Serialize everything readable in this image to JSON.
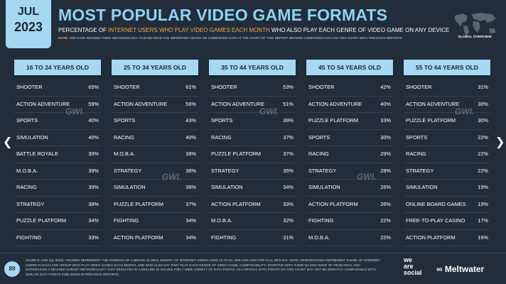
{
  "header": {
    "month": "JUL",
    "year": "2023",
    "title": "MOST POPULAR VIDEO GAME FORMATS",
    "subtitle": [
      "PERCENTAGE OF ",
      "INTERNET USERS WHO PLAY VIDEO GAMES EACH MONTH",
      " WHO ALSO PLAY EACH GENRE OF VIDEO GAME ON ANY DEVICE"
    ],
    "note_label": "NOTE:",
    "note": "GWI HAVE REVISED THEIR METHODOLOGY. PLEASE READ THE IMPORTANT NOTES ON COMPARING DATA AT THE START OF THIS REPORT BEFORE COMPARING DATA ON THIS CHART WITH PREVIOUS REPORTS",
    "badge_label": "GLOBAL OVERVIEW"
  },
  "tables": [
    {
      "heading": "16 TO 24 YEARS OLD",
      "rows": [
        [
          "SHOOTER",
          "65%"
        ],
        [
          "ACTION ADVENTURE",
          "59%"
        ],
        [
          "SPORTS",
          "40%"
        ],
        [
          "SIMULATION",
          "40%"
        ],
        [
          "BATTLE ROYALE",
          "39%"
        ],
        [
          "M.O.B.A.",
          "39%"
        ],
        [
          "RACING",
          "39%"
        ],
        [
          "STRATEGY",
          "38%"
        ],
        [
          "PUZZLE PLATFORM",
          "34%"
        ],
        [
          "FIGHTING",
          "33%"
        ]
      ]
    },
    {
      "heading": "25 TO 34 YEARS OLD",
      "rows": [
        [
          "SHOOTER",
          "61%"
        ],
        [
          "ACTION ADVENTURE",
          "56%"
        ],
        [
          "SPORTS",
          "43%"
        ],
        [
          "RACING",
          "40%"
        ],
        [
          "M.O.B.A.",
          "38%"
        ],
        [
          "STRATEGY",
          "38%"
        ],
        [
          "SIMULATION",
          "38%"
        ],
        [
          "PUZZLE PLATFORM",
          "37%"
        ],
        [
          "FIGHTING",
          "34%"
        ],
        [
          "ACTION PLATFORM",
          "34%"
        ]
      ]
    },
    {
      "heading": "35 TO 44 YEARS OLD",
      "rows": [
        [
          "SHOOTER",
          "53%"
        ],
        [
          "ACTION ADVENTURE",
          "51%"
        ],
        [
          "SPORTS",
          "39%"
        ],
        [
          "RACING",
          "37%"
        ],
        [
          "PUZZLE PLATFORM",
          "37%"
        ],
        [
          "STRATEGY",
          "35%"
        ],
        [
          "SIMULATION",
          "34%"
        ],
        [
          "ACTION PLATFORM",
          "33%"
        ],
        [
          "M.O.B.A.",
          "32%"
        ],
        [
          "FIGHTING",
          "31%"
        ]
      ]
    },
    {
      "heading": "45 TO 54 YEARS OLD",
      "rows": [
        [
          "SHOOTER",
          "42%"
        ],
        [
          "ACTION ADVENTURE",
          "40%"
        ],
        [
          "PUZZLE PLATFORM",
          "33%"
        ],
        [
          "SPORTS",
          "30%"
        ],
        [
          "RACING",
          "29%"
        ],
        [
          "STRATEGY",
          "28%"
        ],
        [
          "SIMULATION",
          "26%"
        ],
        [
          "ACTION PLATFORM",
          "26%"
        ],
        [
          "FIGHTING",
          "22%"
        ],
        [
          "M.O.B.A.",
          "22%"
        ]
      ]
    },
    {
      "heading": "55 TO 64 YEARS OLD",
      "rows": [
        [
          "SHOOTER",
          "31%"
        ],
        [
          "ACTION ADVENTURE",
          "30%"
        ],
        [
          "PUZZLE PLATFORM",
          "30%"
        ],
        [
          "SPORTS",
          "22%"
        ],
        [
          "RACING",
          "22%"
        ],
        [
          "STRATEGY",
          "22%"
        ],
        [
          "SIMULATION",
          "19%"
        ],
        [
          "ONLINE BOARD GAMES",
          "19%"
        ],
        [
          "FREE-TO-PLAY CASINO",
          "17%"
        ],
        [
          "ACTION PLATFORM",
          "16%"
        ]
      ]
    }
  ],
  "watermark": "GWI.",
  "footer": {
    "page_number": "89",
    "source": "SOURCE: GWI (Q1 2023). FIGURES REPRESENT THE FINDINGS OF A BROAD GLOBAL SURVEY OF INTERNET USERS AGED 16 TO 64. SEE GWI.COM FOR FULL DETAILS. NOTE: PERCENTAGES REPRESENT SHARE OF INTERNET USERS IN EACH AGE GROUP WHO PLAY VIDEO GAMES EACH MONTH, AND WHO ALSO SAY THEY PLAY EACH GENRE OF VIDEO GAME. COMPARABILITY: STARTING WITH THEIR Q4 2022 WAVE OF RESEARCH, GWI INTRODUCED A REVISED SURVEY METHODOLOGY THAT RESULTED IN A DECLINE IN VALUES FOR A WIDE VARIETY OF DATA POINTS. AS A RESULT, DATA POINTS ON THIS CHART MAY NOT BE DIRECTLY COMPARABLE WITH SIMILAR DATA POINTS PUBLISHED IN PREVIOUS REPORTS.",
    "logo_we_are_social": [
      "we",
      "are",
      "social"
    ],
    "logo_meltwater": "Meltwater"
  }
}
